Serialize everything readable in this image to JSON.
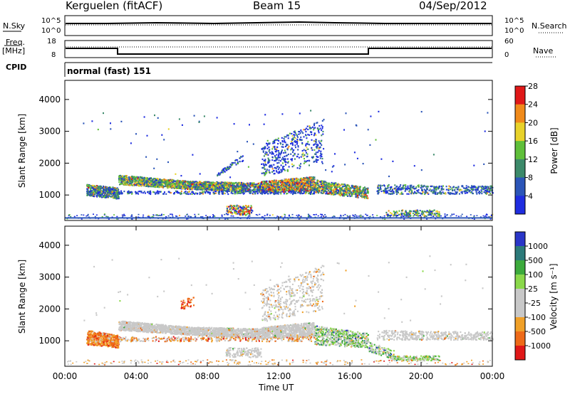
{
  "header": {
    "station": "Kerguelen (fitACF)",
    "beam": "Beam 15",
    "date": "04/Sep/2012"
  },
  "strips": {
    "nsky_label": "N.Sky",
    "nsearch_label": "N.Search",
    "freq_label_line1": "Freq.",
    "freq_label_line2": "[MHz]",
    "nave_label": "Nave",
    "cpid_label": "CPID",
    "cpid_value": "normal (fast) 151",
    "noise_ticks_top": "10^5",
    "noise_ticks_bottom": "10^0",
    "freq_ticks": [
      "18",
      "8"
    ],
    "nave_ticks": [
      "60",
      "0"
    ]
  },
  "chart_data": [
    {
      "type": "heatmap",
      "name": "Power",
      "ylabel": "Slant Range [km]",
      "yticks": [
        1000,
        2000,
        3000,
        4000
      ],
      "ylim": [
        200,
        4600
      ],
      "colorbar_label": "Power [dB]",
      "colorbar_ticks": [
        "4",
        "8",
        "12",
        "16",
        "20",
        "24",
        "28"
      ],
      "colors": [
        "#1f2de0",
        "#2b55b8",
        "#3c8a6a",
        "#5fbf3a",
        "#e8d22a",
        "#f08a1a",
        "#e01818"
      ]
    },
    {
      "type": "heatmap",
      "name": "Velocity",
      "ylabel": "Slant Range [km]",
      "yticks": [
        1000,
        2000,
        3000,
        4000
      ],
      "ylim": [
        200,
        4600
      ],
      "colorbar_label": "Velocity [m s⁻¹]",
      "colorbar_ticks": [
        "1000",
        "500",
        "100",
        "25",
        "-25",
        "-100",
        "-500",
        "-1000"
      ],
      "colors": [
        "#2a36c8",
        "#2c7a7a",
        "#3caa3c",
        "#8ad84a",
        "#c8c8c8",
        "#c8c8c8",
        "#f0a028",
        "#ee6a18",
        "#e01818"
      ]
    }
  ],
  "xaxis": {
    "ticks": [
      "00:00",
      "04:00",
      "08:00",
      "12:00",
      "16:00",
      "20:00",
      "00:00"
    ],
    "label": "Time UT"
  }
}
